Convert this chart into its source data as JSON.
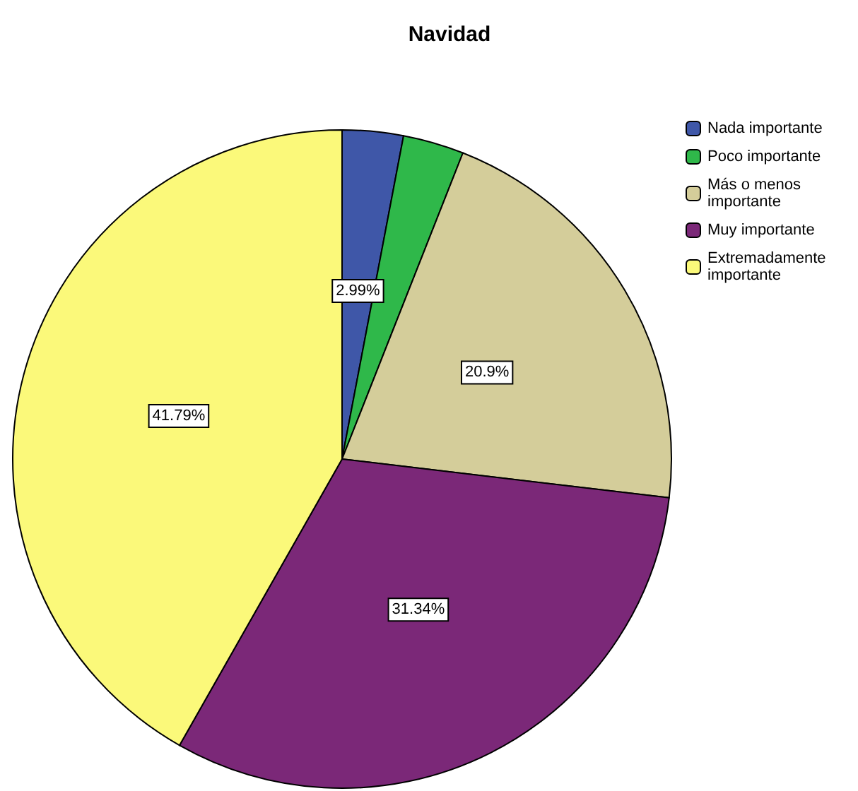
{
  "chart_data": {
    "type": "pie",
    "title": "Navidad",
    "categories": [
      "Nada importante",
      "Poco importante",
      "Más o menos importante",
      "Muy importante",
      "Extremadamente importante"
    ],
    "values": [
      2.99,
      2.99,
      20.9,
      31.34,
      41.79
    ],
    "colors": [
      "#3f57a8",
      "#2fb84a",
      "#d4cd9a",
      "#7b2878",
      "#fbf97a"
    ],
    "value_labels": [
      "2.99%",
      null,
      "20.9%",
      "31.34%",
      "41.79%"
    ],
    "legend": "top right"
  }
}
